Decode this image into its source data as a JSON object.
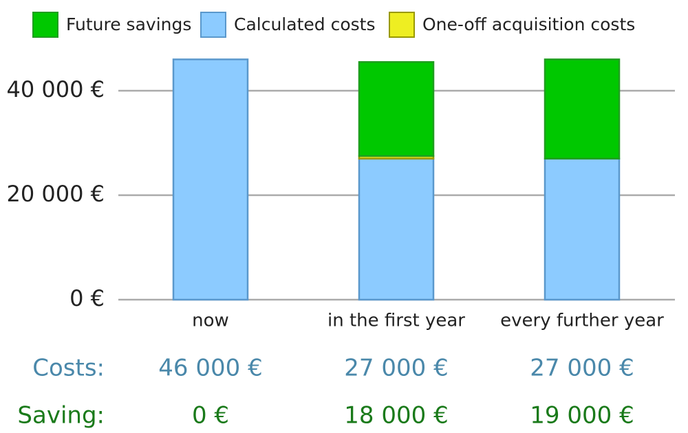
{
  "chart_data": {
    "type": "stacked-bar",
    "categories": [
      "now",
      "in the first year",
      "every further year"
    ],
    "series": [
      {
        "name": "Future savings",
        "color": "#00c800",
        "edge": "#1f9e1f",
        "values": [
          0,
          18000,
          19000
        ],
        "summary_label": "Saving:",
        "summary_color": "#1a7a1a",
        "value_labels": [
          "0 €",
          "18 000 €",
          "19 000 €"
        ]
      },
      {
        "name": "Calculated costs",
        "color": "#8ccbff",
        "edge": "#5a98cc",
        "values": [
          46000,
          27000,
          27000
        ],
        "summary_label": "Costs:",
        "summary_color": "#4a88aa",
        "value_labels": [
          "46 000 €",
          "27 000 €",
          "27 000 €"
        ]
      },
      {
        "name": "One-off acquisition costs",
        "color": "#eeee22",
        "edge": "#999900",
        "values": [
          0,
          500,
          0
        ]
      }
    ],
    "ylim": [
      0,
      50000
    ],
    "yticks": [
      {
        "value": 0,
        "label": "0 €"
      },
      {
        "value": 20000,
        "label": "20 000 €"
      },
      {
        "value": 40000,
        "label": "40 000 €"
      }
    ],
    "grid": true
  }
}
